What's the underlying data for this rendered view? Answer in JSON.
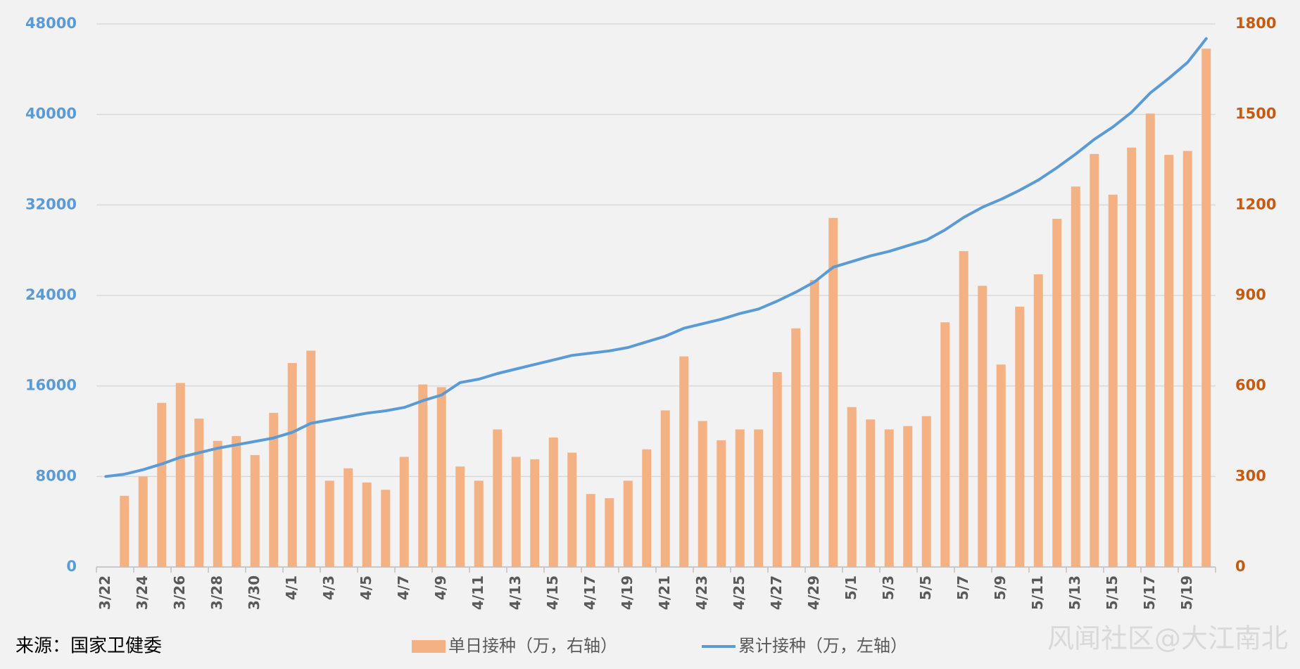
{
  "chart_data": {
    "type": "combo",
    "source": "来源：国家卫健委",
    "watermark": "风闻社区@大江南北",
    "categories": [
      "3/22",
      null,
      "3/24",
      null,
      "3/26",
      null,
      "3/28",
      null,
      "3/30",
      null,
      "4/1",
      null,
      "4/3",
      null,
      "4/5",
      null,
      "4/7",
      null,
      "4/9",
      null,
      "4/11",
      null,
      "4/13",
      null,
      "4/15",
      null,
      "4/17",
      null,
      "4/19",
      null,
      "4/21",
      null,
      "4/23",
      null,
      "4/25",
      null,
      "4/27",
      null,
      "4/29",
      null,
      "5/1",
      null,
      "5/3",
      null,
      "5/5",
      null,
      "5/7",
      null,
      "5/9",
      null,
      "5/11",
      null,
      "5/13",
      null,
      "5/15",
      null,
      "5/17",
      null,
      "5/19",
      null
    ],
    "series": [
      {
        "name": "单日接种（万，右轴）",
        "type": "bar",
        "axis": "y2",
        "color": "#f4b183",
        "values": [
          null,
          236,
          300,
          544,
          610,
          492,
          418,
          434,
          371,
          511,
          676,
          717,
          286,
          327,
          280,
          256,
          365,
          605,
          596,
          333,
          286,
          456,
          365,
          357,
          429,
          379,
          242,
          228,
          286,
          390,
          519,
          698,
          484,
          420,
          456,
          456,
          646,
          791,
          951,
          1157,
          530,
          489,
          456,
          467,
          500,
          811,
          1047,
          932,
          671,
          863,
          970,
          1154,
          1261,
          1369,
          1234,
          1390,
          1503,
          1366,
          1379,
          1718
        ]
      },
      {
        "name": "累计接种（万，左轴）",
        "type": "line",
        "color": "#5b9bd5",
        "values": [
          8000,
          8200,
          8600,
          9100,
          9700,
          10100,
          10500,
          10800,
          11100,
          11400,
          11900,
          12700,
          13000,
          13300,
          13600,
          13800,
          14100,
          14700,
          15200,
          16300,
          16600,
          17100,
          17500,
          17900,
          18300,
          18700,
          18900,
          19100,
          19400,
          19900,
          20400,
          21100,
          21500,
          21900,
          22400,
          22800,
          23500,
          24300,
          25200,
          26500,
          27000,
          27500,
          27900,
          28400,
          28900,
          29800,
          30900,
          31800,
          32500,
          33300,
          34200,
          35300,
          36500,
          37800,
          38900,
          40200,
          41900,
          43200,
          44600,
          46700
        ]
      }
    ],
    "ylim": [
      0,
      48000
    ],
    "yticks": [
      0,
      8000,
      16000,
      24000,
      32000,
      40000,
      48000
    ],
    "y2lim": [
      0,
      1800
    ],
    "y2ticks": [
      0,
      300,
      600,
      900,
      1200,
      1500,
      1800
    ],
    "grid": true,
    "legend": "bottom"
  }
}
